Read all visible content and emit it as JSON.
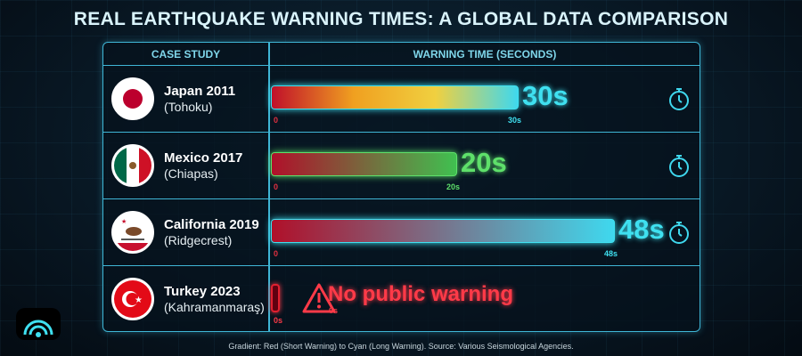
{
  "title": "REAL EARTHQUAKE WARNING TIMES: A GLOBAL DATA COMPARISON",
  "headers": {
    "case": "CASE STUDY",
    "time": "WARNING TIME (SECONDS)"
  },
  "footer": "Gradient: Red (Short Warning) to Cyan (Long Warning). Source: Various Seismological Agencies.",
  "chart_data": {
    "type": "bar",
    "orientation": "horizontal",
    "title": "REAL EARTHQUAKE WARNING TIMES: A GLOBAL DATA COMPARISON",
    "xlabel": "WARNING TIME (SECONDS)",
    "categories": [
      "Japan 2011 (Tohoku)",
      "Mexico 2017 (Chiapas)",
      "California 2019 (Ridgecrest)",
      "Turkey 2023 (Kahramanmaraş)"
    ],
    "values": [
      30,
      20,
      48,
      0
    ],
    "rows": [
      {
        "name": "Japan 2011",
        "sub": "(Tohoku)",
        "value": 30,
        "label": "30s",
        "start": "0",
        "end": "30s",
        "color": "#3fe0f0",
        "gradient": [
          "#c0102a",
          "#f0a020",
          "#f0d040",
          "#3fd8ee"
        ],
        "flag": "japan"
      },
      {
        "name": "Mexico 2017",
        "sub": "(Chiapas)",
        "value": 20,
        "label": "20s",
        "start": "0",
        "end": "20s",
        "color": "#5ee06a",
        "gradient": [
          "#b0102a",
          "#40c050"
        ],
        "flag": "mexico"
      },
      {
        "name": "California 2019",
        "sub": "(Ridgecrest)",
        "value": 48,
        "label": "48s",
        "start": "0",
        "end": "48s",
        "color": "#3fe0f0",
        "gradient": [
          "#b0102a",
          "#3fd8ee"
        ],
        "flag": "california"
      },
      {
        "name": "Turkey 2023",
        "sub": "(Kahramanmaraş)",
        "value": 0,
        "label": "No public warning",
        "start": "0s",
        "end": "0s",
        "color": "#ff3a48",
        "gradient": [
          "#c0102a",
          "#c0102a"
        ],
        "flag": "turkey"
      }
    ]
  }
}
